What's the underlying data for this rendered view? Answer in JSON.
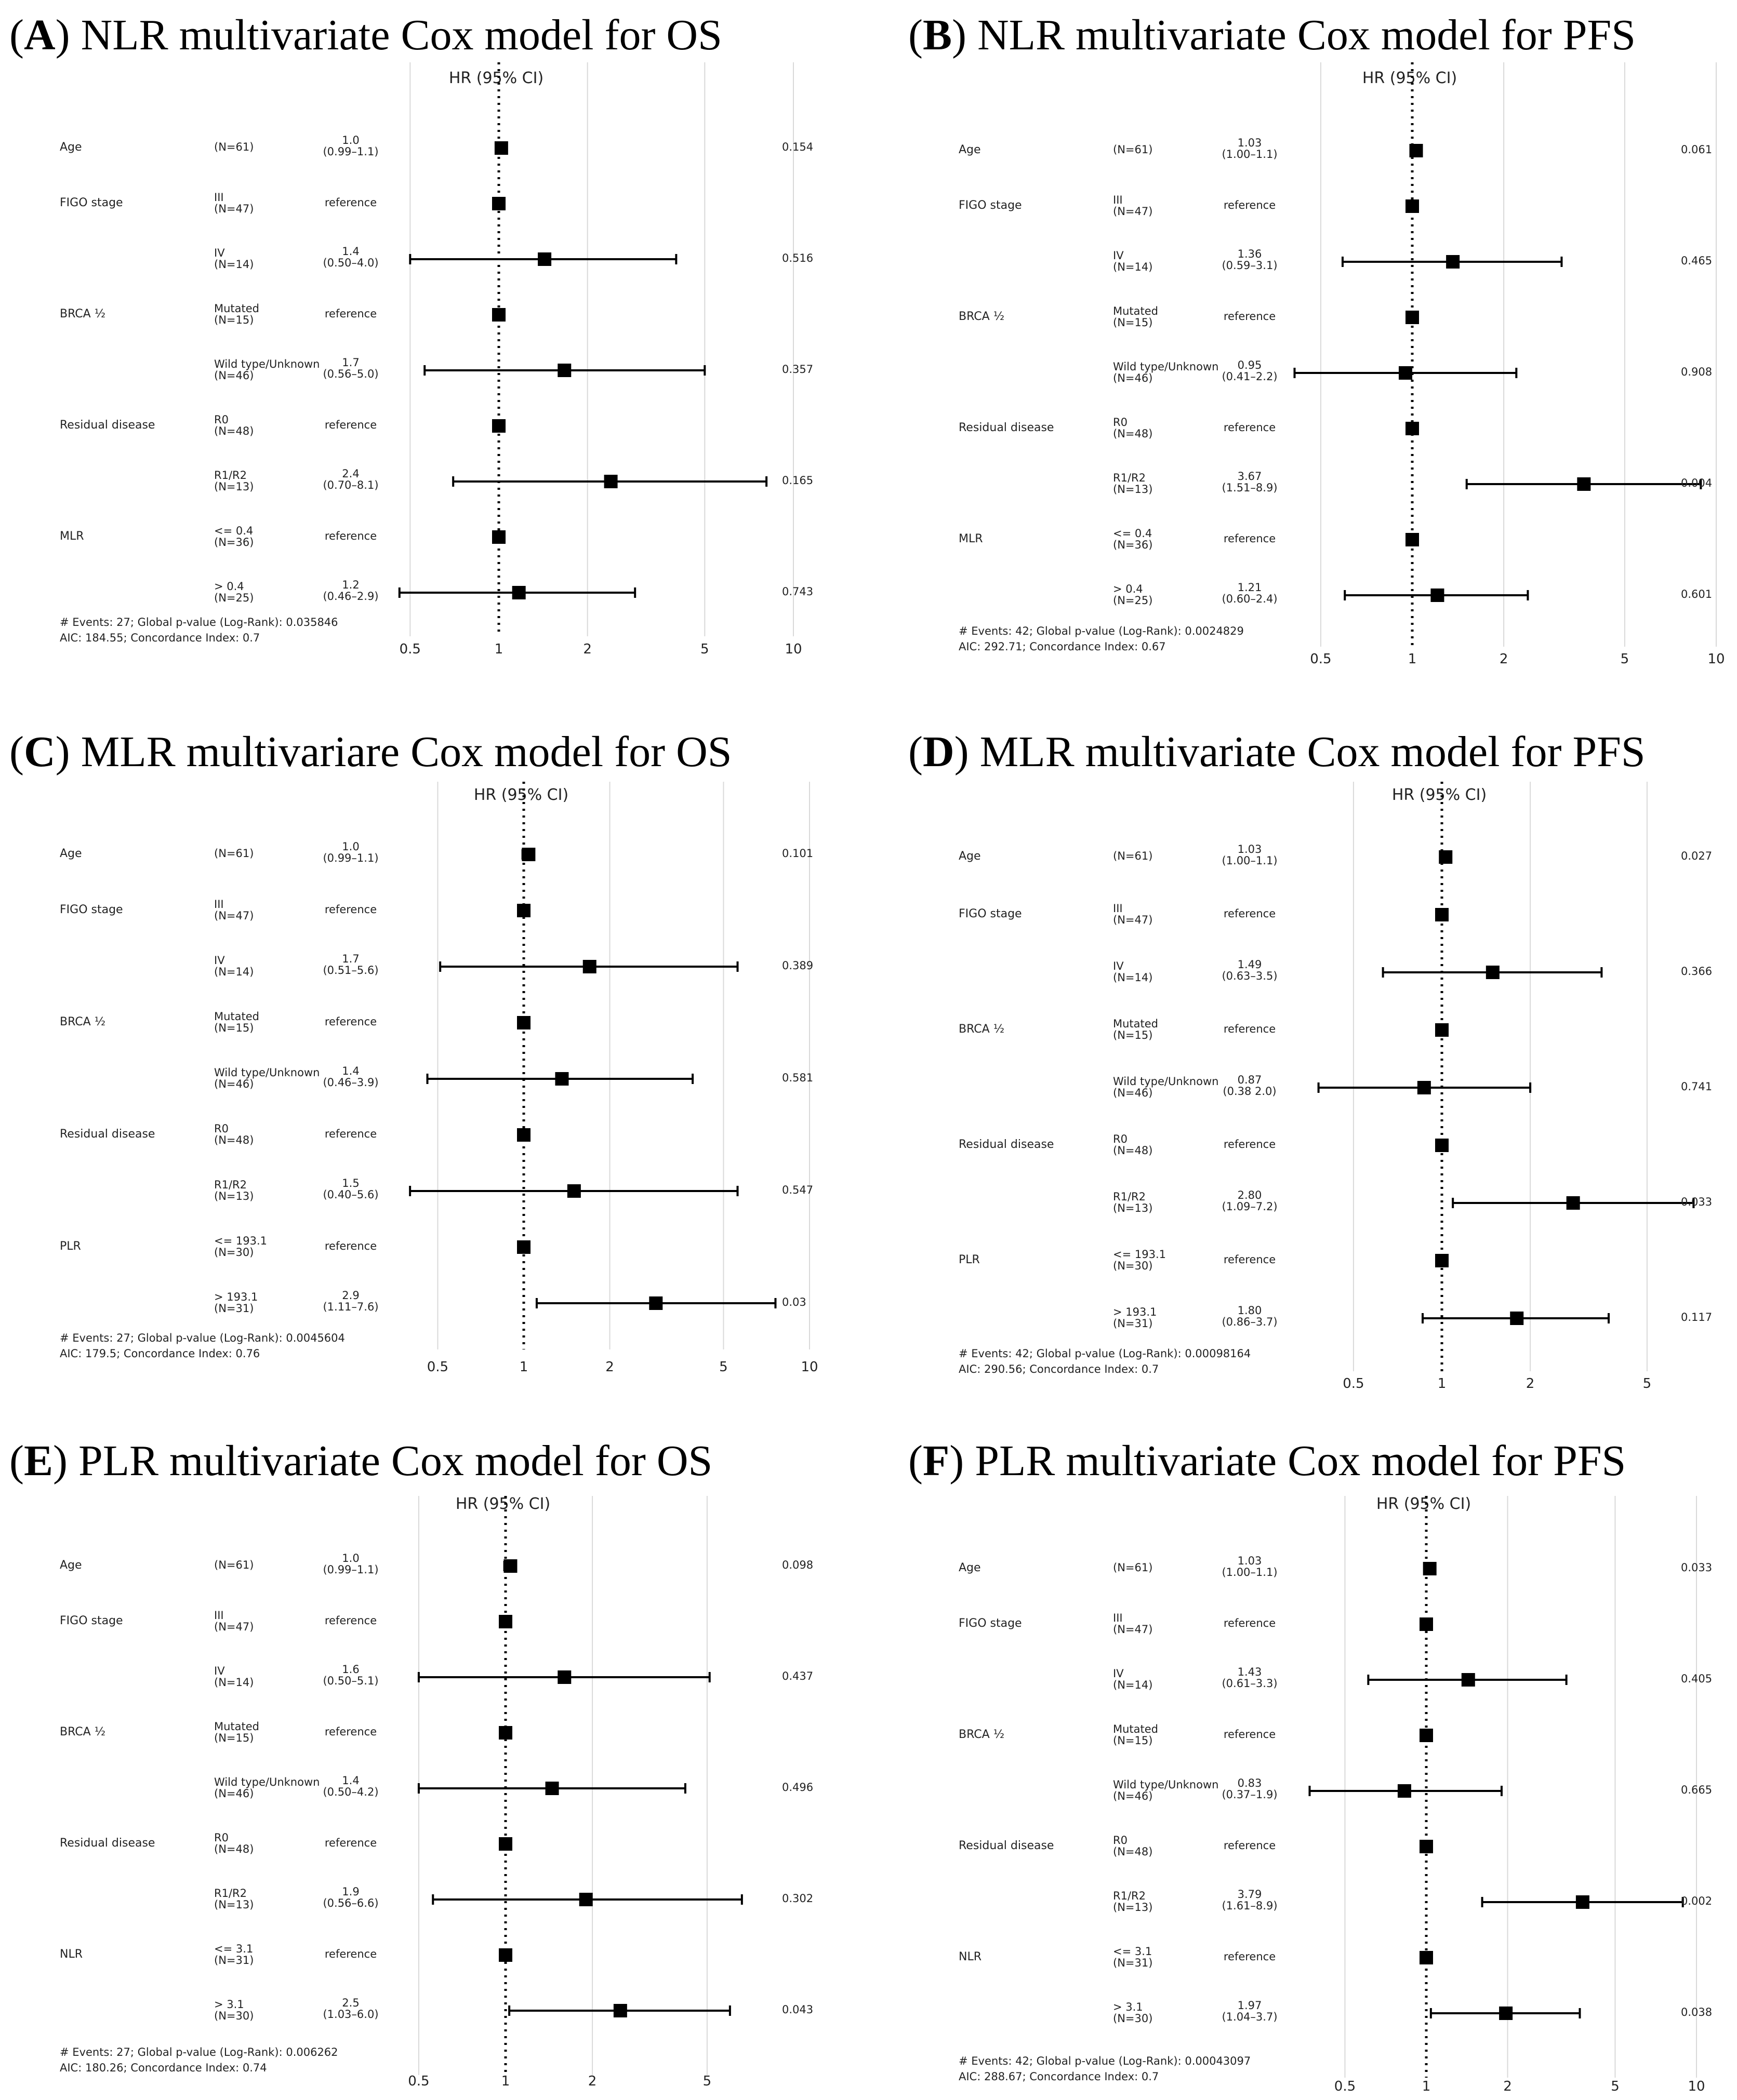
{
  "colors": {
    "ink": "#000000",
    "text": "#222222",
    "grid": "#d9d9d9",
    "background": "#ffffff"
  },
  "chart_data": [
    {
      "type": "forest",
      "letter": "A",
      "title": "NLR multivariate Cox model for OS",
      "xlabel": "HR (95% CI)",
      "xscale": "log",
      "ticks": [
        0.5,
        1,
        2,
        5,
        10
      ],
      "tick_labels": [
        "0.5",
        "1",
        "2",
        "5",
        "10"
      ],
      "rows": [
        {
          "var": "Age",
          "level": "(N=61)",
          "n": "",
          "hr": 1.02,
          "lo": 0.99,
          "hi": 1.06,
          "hr_text": "1.0",
          "ci_text": "(0.99–1.1)",
          "p": "0.154",
          "ref": false
        },
        {
          "var": "FIGO stage",
          "level": "III",
          "n": "(N=47)",
          "hr": 1,
          "ref": true,
          "hr_text": "reference",
          "ci_text": "",
          "p": ""
        },
        {
          "var": "",
          "level": "IV",
          "n": "(N=14)",
          "hr": 1.43,
          "lo": 0.5,
          "hi": 4.0,
          "hr_text": "1.4",
          "ci_text": "(0.50–4.0)",
          "p": "0.516",
          "ref": false
        },
        {
          "var": "BRCA ½",
          "level": "Mutated",
          "n": "(N=15)",
          "hr": 1,
          "ref": true,
          "hr_text": "reference",
          "ci_text": "",
          "p": ""
        },
        {
          "var": "",
          "level": "Wild type/Unknown",
          "n": "(N=46)",
          "hr": 1.67,
          "lo": 0.56,
          "hi": 5.0,
          "hr_text": "1.7",
          "ci_text": "(0.56–5.0)",
          "p": "0.357",
          "ref": false
        },
        {
          "var": "Residual disease",
          "level": "R0",
          "n": "(N=48)",
          "hr": 1,
          "ref": true,
          "hr_text": "reference",
          "ci_text": "",
          "p": ""
        },
        {
          "var": "",
          "level": "R1/R2",
          "n": "(N=13)",
          "hr": 2.4,
          "lo": 0.7,
          "hi": 8.1,
          "hr_text": "2.4",
          "ci_text": "(0.70–8.1)",
          "p": "0.165",
          "ref": false
        },
        {
          "var": "MLR",
          "level": "<= 0.4",
          "n": "(N=36)",
          "hr": 1,
          "ref": true,
          "hr_text": "reference",
          "ci_text": "",
          "p": ""
        },
        {
          "var": "",
          "level": "> 0.4",
          "n": "(N=25)",
          "hr": 1.17,
          "lo": 0.46,
          "hi": 2.9,
          "hr_text": "1.2",
          "ci_text": "(0.46–2.9)",
          "p": "0.743",
          "ref": false
        }
      ],
      "footer": [
        "# Events: 27; Global p-value (Log-Rank): 0.035846",
        "AIC: 184.55; Concordance Index: 0.7"
      ]
    },
    {
      "type": "forest",
      "letter": "B",
      "title": "NLR multivariate Cox model for PFS",
      "xlabel": "HR (95% CI)",
      "xscale": "log",
      "ticks": [
        0.5,
        1,
        2,
        5,
        10
      ],
      "tick_labels": [
        "0.5",
        "1",
        "2",
        "5",
        "10"
      ],
      "rows": [
        {
          "var": "Age",
          "level": "(N=61)",
          "n": "",
          "hr": 1.03,
          "lo": 1.0,
          "hi": 1.06,
          "hr_text": "1.03",
          "ci_text": "(1.00–1.1)",
          "p": "0.061",
          "ref": false
        },
        {
          "var": "FIGO stage",
          "level": "III",
          "n": "(N=47)",
          "hr": 1,
          "ref": true,
          "hr_text": "reference",
          "ci_text": "",
          "p": ""
        },
        {
          "var": "",
          "level": "IV",
          "n": "(N=14)",
          "hr": 1.36,
          "lo": 0.59,
          "hi": 3.1,
          "hr_text": "1.36",
          "ci_text": "(0.59–3.1)",
          "p": "0.465",
          "ref": false
        },
        {
          "var": "BRCA ½",
          "level": "Mutated",
          "n": "(N=15)",
          "hr": 1,
          "ref": true,
          "hr_text": "reference",
          "ci_text": "",
          "p": ""
        },
        {
          "var": "",
          "level": "Wild type/Unknown",
          "n": "(N=46)",
          "hr": 0.95,
          "lo": 0.41,
          "hi": 2.2,
          "hr_text": "0.95",
          "ci_text": "(0.41–2.2)",
          "p": "0.908",
          "ref": false
        },
        {
          "var": "Residual disease",
          "level": "R0",
          "n": "(N=48)",
          "hr": 1,
          "ref": true,
          "hr_text": "reference",
          "ci_text": "",
          "p": ""
        },
        {
          "var": "",
          "level": "R1/R2",
          "n": "(N=13)",
          "hr": 3.67,
          "lo": 1.51,
          "hi": 8.9,
          "hr_text": "3.67",
          "ci_text": "(1.51–8.9)",
          "p": "0.004",
          "ref": false
        },
        {
          "var": "MLR",
          "level": "<= 0.4",
          "n": "(N=36)",
          "hr": 1,
          "ref": true,
          "hr_text": "reference",
          "ci_text": "",
          "p": ""
        },
        {
          "var": "",
          "level": "> 0.4",
          "n": "(N=25)",
          "hr": 1.21,
          "lo": 0.6,
          "hi": 2.4,
          "hr_text": "1.21",
          "ci_text": "(0.60–2.4)",
          "p": "0.601",
          "ref": false
        }
      ],
      "footer": [
        "# Events: 42; Global p-value (Log-Rank): 0.0024829",
        "AIC: 292.71; Concordance Index: 0.67"
      ]
    },
    {
      "type": "forest",
      "letter": "C",
      "title": "MLR multivariare Cox model for OS",
      "xlabel": "HR (95% CI)",
      "xscale": "log",
      "ticks": [
        0.5,
        1,
        2,
        5,
        10
      ],
      "tick_labels": [
        "0.5",
        "1",
        "2",
        "5",
        "10"
      ],
      "rows": [
        {
          "var": "Age",
          "level": "(N=61)",
          "n": "",
          "hr": 1.04,
          "lo": 0.99,
          "hi": 1.08,
          "hr_text": "1.0",
          "ci_text": "(0.99–1.1)",
          "p": "0.101",
          "ref": false
        },
        {
          "var": "FIGO stage",
          "level": "III",
          "n": "(N=47)",
          "hr": 1,
          "ref": true,
          "hr_text": "reference",
          "ci_text": "",
          "p": ""
        },
        {
          "var": "",
          "level": "IV",
          "n": "(N=14)",
          "hr": 1.7,
          "lo": 0.51,
          "hi": 5.6,
          "hr_text": "1.7",
          "ci_text": "(0.51–5.6)",
          "p": "0.389",
          "ref": false
        },
        {
          "var": "BRCA ½",
          "level": "Mutated",
          "n": "(N=15)",
          "hr": 1,
          "ref": true,
          "hr_text": "reference",
          "ci_text": "",
          "p": ""
        },
        {
          "var": "",
          "level": "Wild type/Unknown",
          "n": "(N=46)",
          "hr": 1.36,
          "lo": 0.46,
          "hi": 3.9,
          "hr_text": "1.4",
          "ci_text": "(0.46–3.9)",
          "p": "0.581",
          "ref": false
        },
        {
          "var": "Residual disease",
          "level": "R0",
          "n": "(N=48)",
          "hr": 1,
          "ref": true,
          "hr_text": "reference",
          "ci_text": "",
          "p": ""
        },
        {
          "var": "",
          "level": "R1/R2",
          "n": "(N=13)",
          "hr": 1.5,
          "lo": 0.4,
          "hi": 5.6,
          "hr_text": "1.5",
          "ci_text": "(0.40–5.6)",
          "p": "0.547",
          "ref": false
        },
        {
          "var": "PLR",
          "level": "<= 193.1",
          "n": "(N=30)",
          "hr": 1,
          "ref": true,
          "hr_text": "reference",
          "ci_text": "",
          "p": ""
        },
        {
          "var": "",
          "level": "> 193.1",
          "n": "(N=31)",
          "hr": 2.9,
          "lo": 1.11,
          "hi": 7.6,
          "hr_text": "2.9",
          "ci_text": "(1.11–7.6)",
          "p": "0.03",
          "ref": false
        }
      ],
      "footer": [
        "# Events: 27; Global p-value (Log-Rank): 0.0045604",
        "AIC: 179.5; Concordance Index: 0.76"
      ]
    },
    {
      "type": "forest",
      "letter": "D",
      "title": "MLR multivariate Cox model for PFS",
      "xlabel": "HR (95% CI)",
      "xscale": "log",
      "ticks": [
        0.5,
        1,
        2,
        5
      ],
      "tick_labels": [
        "0.5",
        "1",
        "2",
        "5"
      ],
      "rows": [
        {
          "var": "Age",
          "level": "(N=61)",
          "n": "",
          "hr": 1.03,
          "lo": 1.0,
          "hi": 1.06,
          "hr_text": "1.03",
          "ci_text": "(1.00–1.1)",
          "p": "0.027",
          "ref": false
        },
        {
          "var": "FIGO stage",
          "level": "III",
          "n": "(N=47)",
          "hr": 1,
          "ref": true,
          "hr_text": "reference",
          "ci_text": "",
          "p": ""
        },
        {
          "var": "",
          "level": "IV",
          "n": "(N=14)",
          "hr": 1.49,
          "lo": 0.63,
          "hi": 3.5,
          "hr_text": "1.49",
          "ci_text": "(0.63–3.5)",
          "p": "0.366",
          "ref": false
        },
        {
          "var": "BRCA ½",
          "level": "Mutated",
          "n": "(N=15)",
          "hr": 1,
          "ref": true,
          "hr_text": "reference",
          "ci_text": "",
          "p": ""
        },
        {
          "var": "",
          "level": "Wild type/Unknown",
          "n": "(N=46)",
          "hr": 0.87,
          "lo": 0.38,
          "hi": 2.0,
          "hr_text": "0.87",
          "ci_text": "(0.38  2.0)",
          "p": "0.741",
          "ref": false
        },
        {
          "var": "Residual disease",
          "level": "R0",
          "n": "(N=48)",
          "hr": 1,
          "ref": true,
          "hr_text": "reference",
          "ci_text": "",
          "p": ""
        },
        {
          "var": "",
          "level": "R1/R2",
          "n": "(N=13)",
          "hr": 2.8,
          "lo": 1.09,
          "hi": 7.2,
          "hr_text": "2.80",
          "ci_text": "(1.09–7.2)",
          "p": "0.033",
          "ref": false
        },
        {
          "var": "PLR",
          "level": "<= 193.1",
          "n": "(N=30)",
          "hr": 1,
          "ref": true,
          "hr_text": "reference",
          "ci_text": "",
          "p": ""
        },
        {
          "var": "",
          "level": "> 193.1",
          "n": "(N=31)",
          "hr": 1.8,
          "lo": 0.86,
          "hi": 3.7,
          "hr_text": "1.80",
          "ci_text": "(0.86–3.7)",
          "p": "0.117",
          "ref": false
        }
      ],
      "footer": [
        "# Events: 42; Global p-value (Log-Rank): 0.00098164",
        "AIC: 290.56; Concordance Index: 0.7"
      ]
    },
    {
      "type": "forest",
      "letter": "E",
      "title": "PLR multivariate Cox model for OS",
      "xlabel": "HR (95% CI)",
      "xscale": "log",
      "ticks": [
        0.5,
        1,
        2,
        5
      ],
      "tick_labels": [
        "0.5",
        "1",
        "2",
        "5"
      ],
      "rows": [
        {
          "var": "Age",
          "level": "(N=61)",
          "n": "",
          "hr": 1.04,
          "lo": 0.99,
          "hi": 1.08,
          "hr_text": "1.0",
          "ci_text": "(0.99–1.1)",
          "p": "0.098",
          "ref": false
        },
        {
          "var": "FIGO stage",
          "level": "III",
          "n": "(N=47)",
          "hr": 1,
          "ref": true,
          "hr_text": "reference",
          "ci_text": "",
          "p": ""
        },
        {
          "var": "",
          "level": "IV",
          "n": "(N=14)",
          "hr": 1.6,
          "lo": 0.5,
          "hi": 5.1,
          "hr_text": "1.6",
          "ci_text": "(0.50–5.1)",
          "p": "0.437",
          "ref": false
        },
        {
          "var": "BRCA ½",
          "level": "Mutated",
          "n": "(N=15)",
          "hr": 1,
          "ref": true,
          "hr_text": "reference",
          "ci_text": "",
          "p": ""
        },
        {
          "var": "",
          "level": "Wild type/Unknown",
          "n": "(N=46)",
          "hr": 1.45,
          "lo": 0.5,
          "hi": 4.2,
          "hr_text": "1.4",
          "ci_text": "(0.50–4.2)",
          "p": "0.496",
          "ref": false
        },
        {
          "var": "Residual disease",
          "level": "R0",
          "n": "(N=48)",
          "hr": 1,
          "ref": true,
          "hr_text": "reference",
          "ci_text": "",
          "p": ""
        },
        {
          "var": "",
          "level": "R1/R2",
          "n": "(N=13)",
          "hr": 1.9,
          "lo": 0.56,
          "hi": 6.6,
          "hr_text": "1.9",
          "ci_text": "(0.56–6.6)",
          "p": "0.302",
          "ref": false
        },
        {
          "var": "NLR",
          "level": "<= 3.1",
          "n": "(N=31)",
          "hr": 1,
          "ref": true,
          "hr_text": "reference",
          "ci_text": "",
          "p": ""
        },
        {
          "var": "",
          "level": "> 3.1",
          "n": "(N=30)",
          "hr": 2.5,
          "lo": 1.03,
          "hi": 6.0,
          "hr_text": "2.5",
          "ci_text": "(1.03–6.0)",
          "p": "0.043",
          "ref": false
        }
      ],
      "footer": [
        "# Events: 27; Global p-value (Log-Rank): 0.006262",
        "AIC: 180.26; Concordance Index: 0.74"
      ]
    },
    {
      "type": "forest",
      "letter": "F",
      "title": "PLR multivariate Cox model for PFS",
      "xlabel": "HR (95% CI)",
      "xscale": "log",
      "ticks": [
        0.5,
        1,
        2,
        5,
        10
      ],
      "tick_labels": [
        "0.5",
        "1",
        "2",
        "5",
        "10"
      ],
      "rows": [
        {
          "var": "Age",
          "level": "(N=61)",
          "n": "",
          "hr": 1.03,
          "lo": 1.0,
          "hi": 1.06,
          "hr_text": "1.03",
          "ci_text": "(1.00–1.1)",
          "p": "0.033",
          "ref": false
        },
        {
          "var": "FIGO stage",
          "level": "III",
          "n": "(N=47)",
          "hr": 1,
          "ref": true,
          "hr_text": "reference",
          "ci_text": "",
          "p": ""
        },
        {
          "var": "",
          "level": "IV",
          "n": "(N=14)",
          "hr": 1.43,
          "lo": 0.61,
          "hi": 3.3,
          "hr_text": "1.43",
          "ci_text": "(0.61–3.3)",
          "p": "0.405",
          "ref": false
        },
        {
          "var": "BRCA ½",
          "level": "Mutated",
          "n": "(N=15)",
          "hr": 1,
          "ref": true,
          "hr_text": "reference",
          "ci_text": "",
          "p": ""
        },
        {
          "var": "",
          "level": "Wild type/Unknown",
          "n": "(N=46)",
          "hr": 0.83,
          "lo": 0.37,
          "hi": 1.9,
          "hr_text": "0.83",
          "ci_text": "(0.37–1.9)",
          "p": "0.665",
          "ref": false
        },
        {
          "var": "Residual disease",
          "level": "R0",
          "n": "(N=48)",
          "hr": 1,
          "ref": true,
          "hr_text": "reference",
          "ci_text": "",
          "p": ""
        },
        {
          "var": "",
          "level": "R1/R2",
          "n": "(N=13)",
          "hr": 3.79,
          "lo": 1.61,
          "hi": 8.9,
          "hr_text": "3.79",
          "ci_text": "(1.61–8.9)",
          "p": "0.002",
          "ref": false
        },
        {
          "var": "NLR",
          "level": "<= 3.1",
          "n": "(N=31)",
          "hr": 1,
          "ref": true,
          "hr_text": "reference",
          "ci_text": "",
          "p": ""
        },
        {
          "var": "",
          "level": "> 3.1",
          "n": "(N=30)",
          "hr": 1.97,
          "lo": 1.04,
          "hi": 3.7,
          "hr_text": "1.97",
          "ci_text": "(1.04–3.7)",
          "p": "0.038",
          "ref": false
        }
      ],
      "footer": [
        "# Events: 42; Global p-value (Log-Rank): 0.00043097",
        "AIC: 288.67; Concordance Index: 0.7"
      ]
    }
  ]
}
